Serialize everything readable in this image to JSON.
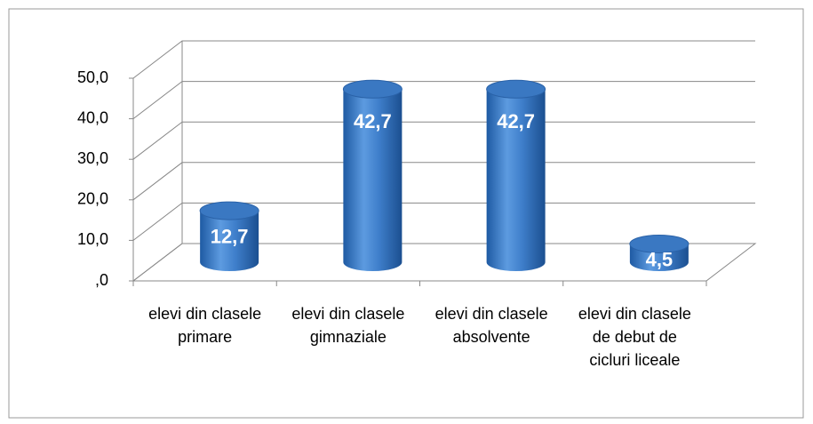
{
  "chart_data": {
    "type": "bar3d",
    "categories": [
      "elevi din clasele primare",
      "elevi din clasele gimnaziale",
      "elevi din clasele absolvente",
      "elevi din clasele de debut de cicluri liceale"
    ],
    "values": [
      12.7,
      42.7,
      42.7,
      4.5
    ],
    "value_labels": [
      "12,7",
      "42,7",
      "42,7",
      "4,5"
    ],
    "color": "#3a78c2",
    "ylim": [
      0,
      50
    ],
    "yticks": [
      {
        "value": 0,
        "label": ",0"
      },
      {
        "value": 10,
        "label": "10,0"
      },
      {
        "value": 20,
        "label": "20,0"
      },
      {
        "value": 30,
        "label": "30,0"
      },
      {
        "value": 40,
        "label": "40,0"
      },
      {
        "value": 50,
        "label": "50,0"
      }
    ],
    "grid": true
  }
}
